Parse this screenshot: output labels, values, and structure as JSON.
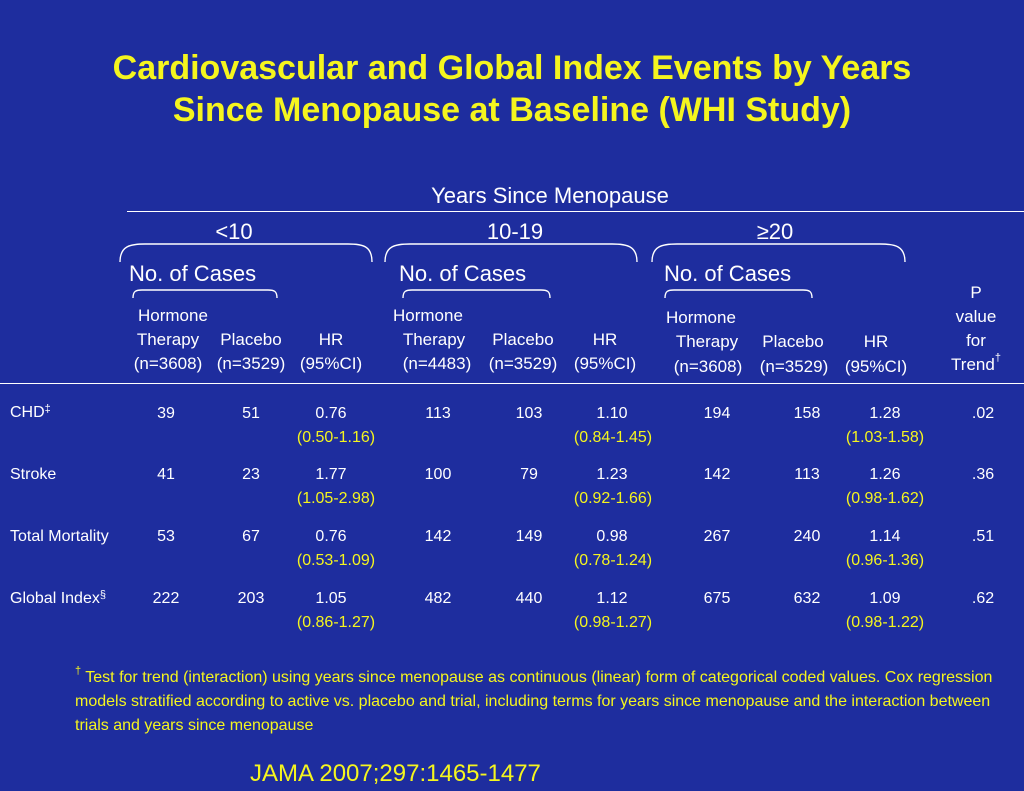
{
  "colors": {
    "background": "#1e2d9e",
    "title": "#f5f51e",
    "text": "#ffffff",
    "ci": "#f5f51e"
  },
  "title": {
    "line1": "Cardiovascular and Global Index Events by Years",
    "line2": "Since Menopause at Baseline (WHI Study)"
  },
  "table": {
    "group_header": "Years Since Menopause",
    "groups": [
      {
        "label": "<10",
        "cases_label": "No. of Cases",
        "ht_label1": "Hormone",
        "ht_label2": "Therapy",
        "ht_n": "(n=3608)",
        "placebo_label": "Placebo",
        "placebo_n": "(n=3529)",
        "hr_label": "HR",
        "hr_ci_label": "(95%CI)"
      },
      {
        "label": "10-19",
        "cases_label": "No. of Cases",
        "ht_label1": "Hormone",
        "ht_label2": "Therapy",
        "ht_n": "(n=4483)",
        "placebo_label": "Placebo",
        "placebo_n": "(n=3529)",
        "hr_label": "HR",
        "hr_ci_label": "(95%CI)"
      },
      {
        "label": "≥20",
        "cases_label": "No. of Cases",
        "ht_label1": "Hormone",
        "ht_label2": "Therapy",
        "ht_n": "(n=3608)",
        "placebo_label": "Placebo",
        "placebo_n": "(n=3529)",
        "hr_label": "HR",
        "hr_ci_label": "(95%CI)"
      }
    ],
    "p_header": {
      "line1": "P",
      "line2": "value",
      "line3": "for",
      "line4": "Trend",
      "mark": "†"
    },
    "rows": [
      {
        "label": "CHD",
        "mark": "‡",
        "g1": {
          "ht": "39",
          "pl": "51",
          "hr": "0.76",
          "ci": "(0.50-1.16)"
        },
        "g2": {
          "ht": "113",
          "pl": "103",
          "hr": "1.10",
          "ci": "(0.84-1.45)"
        },
        "g3": {
          "ht": "194",
          "pl": "158",
          "hr": "1.28",
          "ci": "(1.03-1.58)"
        },
        "p": ".02"
      },
      {
        "label": "Stroke",
        "mark": "",
        "g1": {
          "ht": "41",
          "pl": "23",
          "hr": "1.77",
          "ci": "(1.05-2.98)"
        },
        "g2": {
          "ht": "100",
          "pl": "79",
          "hr": "1.23",
          "ci": "(0.92-1.66)"
        },
        "g3": {
          "ht": "142",
          "pl": "113",
          "hr": "1.26",
          "ci": "(0.98-1.62)"
        },
        "p": ".36"
      },
      {
        "label": "Total Mortality",
        "mark": "",
        "g1": {
          "ht": "53",
          "pl": "67",
          "hr": "0.76",
          "ci": "(0.53-1.09)"
        },
        "g2": {
          "ht": "142",
          "pl": "149",
          "hr": "0.98",
          "ci": "(0.78-1.24)"
        },
        "g3": {
          "ht": "267",
          "pl": "240",
          "hr": "1.14",
          "ci": "(0.96-1.36)"
        },
        "p": ".51"
      },
      {
        "label": "Global Index",
        "mark": "§",
        "g1": {
          "ht": "222",
          "pl": "203",
          "hr": "1.05",
          "ci": "(0.86-1.27)"
        },
        "g2": {
          "ht": "482",
          "pl": "440",
          "hr": "1.12",
          "ci": "(0.98-1.27)"
        },
        "g3": {
          "ht": "675",
          "pl": "632",
          "hr": "1.09",
          "ci": "(0.98-1.22)"
        },
        "p": ".62"
      }
    ]
  },
  "footnote": {
    "mark": "†",
    "text": " Test for trend (interaction) using years since menopause as continuous (linear) form of categorical coded values. Cox regression models stratified according to active vs. placebo and trial, including terms for years since menopause and the interaction between trials and years since menopause"
  },
  "citation": "JAMA  2007;297:1465-1477"
}
